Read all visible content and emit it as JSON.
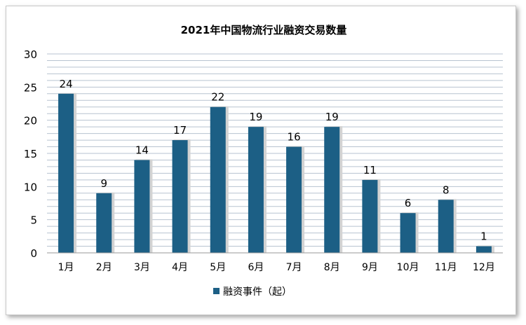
{
  "chart_data": {
    "type": "bar",
    "title": "2021年中国物流行业融资交易数量",
    "categories": [
      "1月",
      "2月",
      "3月",
      "4月",
      "5月",
      "6月",
      "7月",
      "8月",
      "9月",
      "10月",
      "11月",
      "12月"
    ],
    "series": [
      {
        "name": "融资事件（起）",
        "values": [
          24,
          9,
          14,
          17,
          22,
          19,
          16,
          19,
          11,
          6,
          8,
          1
        ],
        "color": "#1c5f85"
      }
    ],
    "ylim": [
      0,
      30
    ],
    "yticks": [
      0,
      5,
      10,
      15,
      20,
      25,
      30
    ],
    "ytick_labels": [
      "0",
      "5",
      "10",
      "15",
      "20",
      "25",
      "30"
    ],
    "data_labels": [
      "24",
      "9",
      "14",
      "17",
      "22",
      "19",
      "16",
      "19",
      "11",
      "6",
      "8",
      "1"
    ],
    "xlabel": "",
    "ylabel": "",
    "grid": true,
    "legend_position": "bottom"
  }
}
